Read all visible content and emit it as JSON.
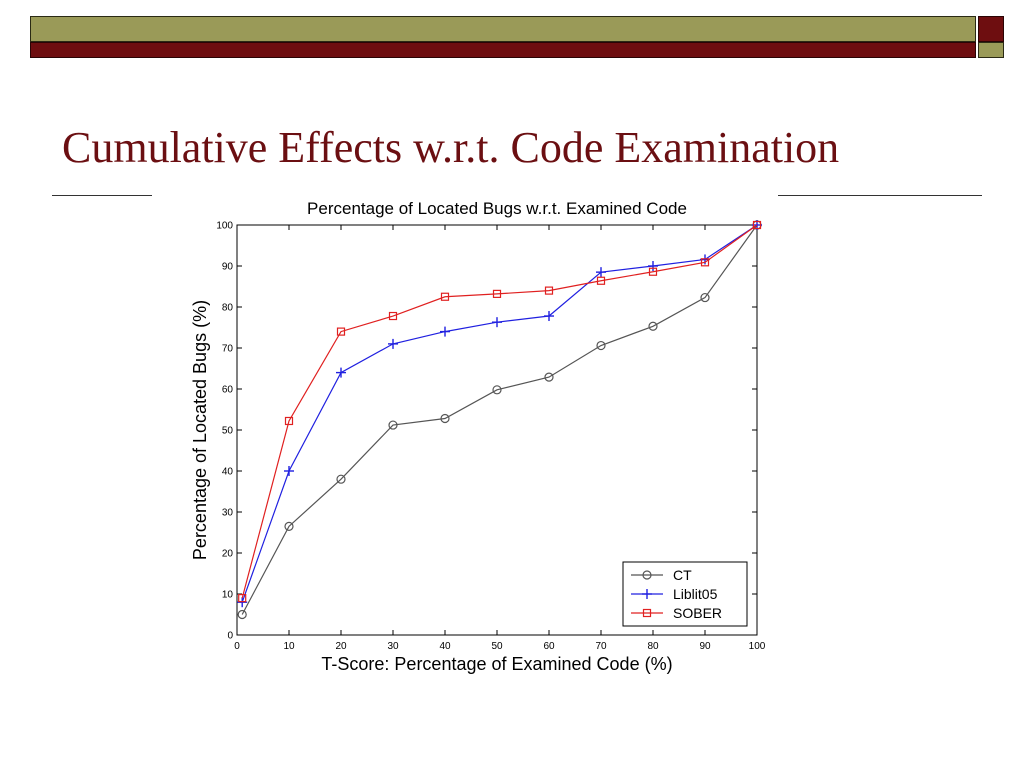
{
  "slide": {
    "title": "Cumulative Effects w.r.t. Code Examination"
  },
  "colors": {
    "band_olive": "#9a9a58",
    "band_red": "#6e0e10",
    "title": "#6b0f12",
    "ct": "#555555",
    "liblit05": "#2020e0",
    "sober": "#e02020"
  },
  "chart_data": {
    "type": "line",
    "title": "Percentage of Located Bugs w.r.t. Examined Code",
    "xlabel": "T-Score: Percentage of Examined Code (%)",
    "ylabel": "Percentage of Located Bugs (%)",
    "xlim": [
      0,
      100
    ],
    "ylim": [
      0,
      100
    ],
    "xticks": [
      "0",
      "10",
      "20",
      "30",
      "40",
      "50",
      "60",
      "70",
      "80",
      "90",
      "100"
    ],
    "yticks": [
      "0",
      "10",
      "20",
      "30",
      "40",
      "50",
      "60",
      "70",
      "80",
      "90",
      "100"
    ],
    "grid": false,
    "legend_position": "bottom-right",
    "series": [
      {
        "name": "CT",
        "marker": "circle",
        "x": [
          1,
          10,
          20,
          30,
          40,
          50,
          60,
          70,
          80,
          90,
          100
        ],
        "values": [
          5,
          26.5,
          38,
          51.2,
          52.8,
          59.8,
          62.9,
          70.6,
          75.3,
          82.3,
          100
        ]
      },
      {
        "name": "Liblit05",
        "marker": "plus",
        "x": [
          1,
          10,
          20,
          30,
          40,
          50,
          60,
          70,
          80,
          90,
          100
        ],
        "values": [
          8,
          40,
          64,
          71,
          74,
          76.3,
          77.8,
          88.5,
          90,
          91.6,
          100
        ]
      },
      {
        "name": "SOBER",
        "marker": "square",
        "x": [
          1,
          10,
          20,
          30,
          40,
          50,
          60,
          70,
          80,
          90,
          100
        ],
        "values": [
          9,
          52.2,
          74,
          77.8,
          82.5,
          83.2,
          84,
          86.4,
          88.6,
          90.9,
          100
        ]
      }
    ]
  }
}
